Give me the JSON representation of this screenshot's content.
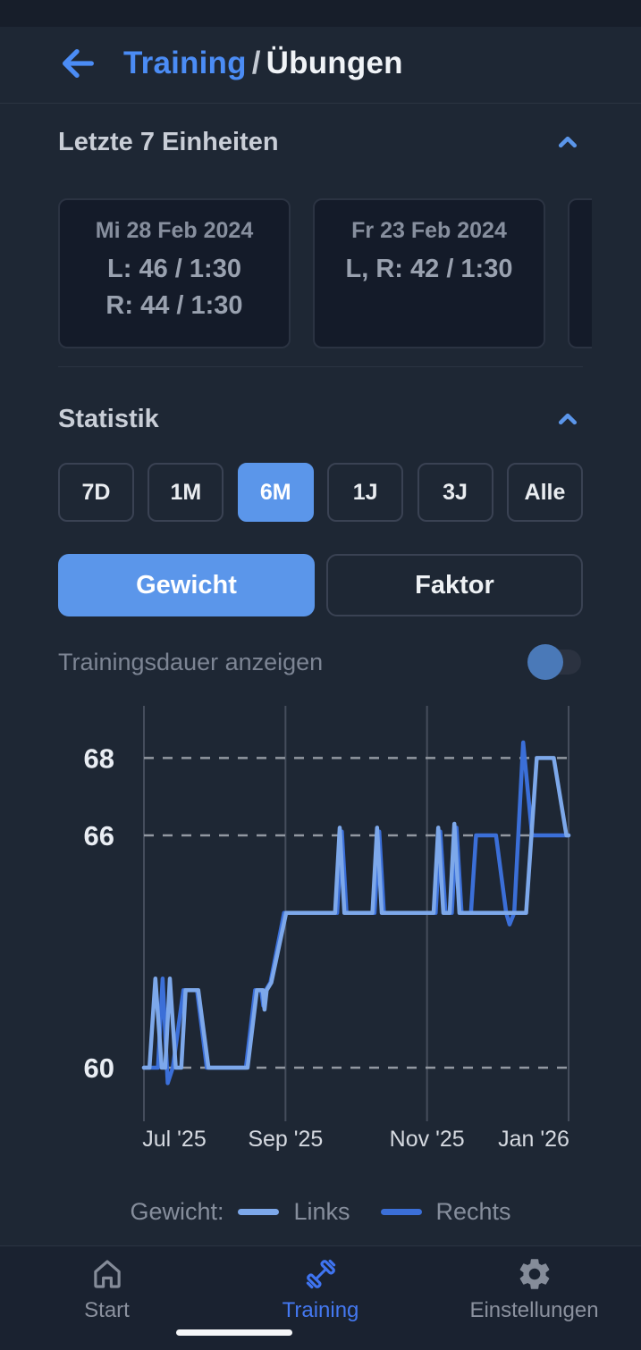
{
  "header": {
    "breadcrumb_primary": "Training",
    "breadcrumb_separator": "/",
    "breadcrumb_current": "Übungen"
  },
  "sessions": {
    "title": "Letzte 7 Einheiten",
    "cards": [
      {
        "date": "Mi 28 Feb 2024",
        "lines": [
          "L: 46 / 1:30",
          "R: 44 / 1:30"
        ]
      },
      {
        "date": "Fr 23 Feb 2024",
        "lines": [
          "L, R: 42 / 1:30"
        ]
      }
    ]
  },
  "statistics": {
    "title": "Statistik",
    "ranges": [
      {
        "label": "7D",
        "active": false
      },
      {
        "label": "1M",
        "active": false
      },
      {
        "label": "6M",
        "active": true
      },
      {
        "label": "1J",
        "active": false
      },
      {
        "label": "3J",
        "active": false
      },
      {
        "label": "Alle",
        "active": false
      }
    ],
    "metric_buttons": [
      {
        "label": "Gewicht",
        "active": true
      },
      {
        "label": "Faktor",
        "active": false
      }
    ],
    "duration_toggle": {
      "label": "Trainingsdauer anzeigen",
      "on": false
    }
  },
  "chart_data": {
    "type": "line",
    "title": "",
    "xlabel": "",
    "ylabel": "",
    "x_tick_labels": [
      "Jul '25",
      "Sep '25",
      "Nov '25",
      "Jan '26"
    ],
    "y_tick_labels": [
      68,
      66,
      60
    ],
    "y_range_shown": [
      58.8,
      69.6
    ],
    "grid": {
      "vertical_solid": true,
      "horizontal_dashed_at": [
        68,
        66,
        60
      ]
    },
    "legend_position": "bottom",
    "series": [
      {
        "name": "Links",
        "color": "#7da8ea",
        "points": [
          [
            0,
            60
          ],
          [
            0.013,
            60
          ],
          [
            0.027,
            62.3
          ],
          [
            0.042,
            60
          ],
          [
            0.05,
            60
          ],
          [
            0.061,
            62.3
          ],
          [
            0.075,
            60
          ],
          [
            0.088,
            60
          ],
          [
            0.098,
            62
          ],
          [
            0.128,
            62
          ],
          [
            0.152,
            60
          ],
          [
            0.244,
            60
          ],
          [
            0.266,
            62
          ],
          [
            0.28,
            62
          ],
          [
            0.284,
            61.5
          ],
          [
            0.289,
            62
          ],
          [
            0.3,
            62.2
          ],
          [
            0.335,
            64
          ],
          [
            0.45,
            64
          ],
          [
            0.461,
            66.2
          ],
          [
            0.472,
            64
          ],
          [
            0.538,
            64
          ],
          [
            0.549,
            66.2
          ],
          [
            0.56,
            64
          ],
          [
            0.682,
            64
          ],
          [
            0.693,
            66.2
          ],
          [
            0.705,
            64
          ],
          [
            0.72,
            64
          ],
          [
            0.731,
            66.3
          ],
          [
            0.743,
            64
          ],
          [
            0.9,
            64
          ],
          [
            0.925,
            68
          ],
          [
            0.965,
            68
          ],
          [
            0.995,
            66
          ],
          [
            1,
            66
          ]
        ]
      },
      {
        "name": "Rechts",
        "color": "#3b6fd8",
        "points": [
          [
            0,
            60
          ],
          [
            0.033,
            60
          ],
          [
            0.044,
            62.3
          ],
          [
            0.056,
            59.6
          ],
          [
            0.068,
            60
          ],
          [
            0.093,
            62
          ],
          [
            0.125,
            62
          ],
          [
            0.148,
            60
          ],
          [
            0.24,
            60
          ],
          [
            0.262,
            62
          ],
          [
            0.276,
            62
          ],
          [
            0.281,
            61.6
          ],
          [
            0.287,
            62
          ],
          [
            0.298,
            62.2
          ],
          [
            0.33,
            64
          ],
          [
            0.455,
            64
          ],
          [
            0.466,
            66.1
          ],
          [
            0.477,
            64
          ],
          [
            0.543,
            64
          ],
          [
            0.554,
            66.1
          ],
          [
            0.565,
            64
          ],
          [
            0.687,
            64
          ],
          [
            0.698,
            66.1
          ],
          [
            0.71,
            64
          ],
          [
            0.725,
            64
          ],
          [
            0.736,
            66.2
          ],
          [
            0.748,
            64
          ],
          [
            0.77,
            64
          ],
          [
            0.782,
            66
          ],
          [
            0.829,
            66
          ],
          [
            0.853,
            64
          ],
          [
            0.861,
            63.7
          ],
          [
            0.872,
            64
          ],
          [
            0.893,
            68.4
          ],
          [
            0.914,
            66
          ],
          [
            1,
            66
          ]
        ]
      }
    ]
  },
  "legend": {
    "prefix": "Gewicht:",
    "items": [
      {
        "label": "Links",
        "color": "#7da8ea"
      },
      {
        "label": "Rechts",
        "color": "#3b6fd8"
      }
    ]
  },
  "nav": {
    "items": [
      {
        "label": "Start",
        "icon": "home-icon",
        "active": false
      },
      {
        "label": "Training",
        "icon": "dumbbell-icon",
        "active": true
      },
      {
        "label": "Einstellungen",
        "icon": "gear-icon",
        "active": false
      }
    ]
  },
  "colors": {
    "background": "#1e2734",
    "card_background": "#141b29",
    "accent_blue": "#5b96ea",
    "link_blue": "#4b8cf5",
    "nav_active_blue": "#4478f0",
    "muted_text": "#868e9c",
    "series_links": "#7da8ea",
    "series_rechts": "#3b6fd8"
  }
}
